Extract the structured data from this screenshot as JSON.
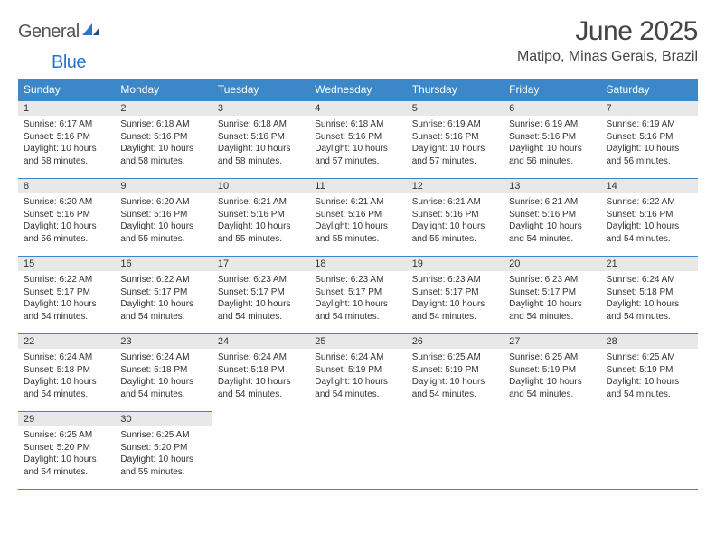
{
  "logo": {
    "part1": "General",
    "part2": "Blue"
  },
  "title": "June 2025",
  "location": "Matipo, Minas Gerais, Brazil",
  "colors": {
    "header_bg": "#3b87c8",
    "header_text": "#ffffff",
    "daynum_bg": "#e8e8e8",
    "border": "#3b87c8",
    "logo_gray": "#555555",
    "logo_blue": "#2a74c7"
  },
  "weekdays": [
    "Sunday",
    "Monday",
    "Tuesday",
    "Wednesday",
    "Thursday",
    "Friday",
    "Saturday"
  ],
  "weeks": [
    [
      {
        "n": "1",
        "sr": "6:17 AM",
        "ss": "5:16 PM",
        "dl": "10 hours and 58 minutes."
      },
      {
        "n": "2",
        "sr": "6:18 AM",
        "ss": "5:16 PM",
        "dl": "10 hours and 58 minutes."
      },
      {
        "n": "3",
        "sr": "6:18 AM",
        "ss": "5:16 PM",
        "dl": "10 hours and 58 minutes."
      },
      {
        "n": "4",
        "sr": "6:18 AM",
        "ss": "5:16 PM",
        "dl": "10 hours and 57 minutes."
      },
      {
        "n": "5",
        "sr": "6:19 AM",
        "ss": "5:16 PM",
        "dl": "10 hours and 57 minutes."
      },
      {
        "n": "6",
        "sr": "6:19 AM",
        "ss": "5:16 PM",
        "dl": "10 hours and 56 minutes."
      },
      {
        "n": "7",
        "sr": "6:19 AM",
        "ss": "5:16 PM",
        "dl": "10 hours and 56 minutes."
      }
    ],
    [
      {
        "n": "8",
        "sr": "6:20 AM",
        "ss": "5:16 PM",
        "dl": "10 hours and 56 minutes."
      },
      {
        "n": "9",
        "sr": "6:20 AM",
        "ss": "5:16 PM",
        "dl": "10 hours and 55 minutes."
      },
      {
        "n": "10",
        "sr": "6:21 AM",
        "ss": "5:16 PM",
        "dl": "10 hours and 55 minutes."
      },
      {
        "n": "11",
        "sr": "6:21 AM",
        "ss": "5:16 PM",
        "dl": "10 hours and 55 minutes."
      },
      {
        "n": "12",
        "sr": "6:21 AM",
        "ss": "5:16 PM",
        "dl": "10 hours and 55 minutes."
      },
      {
        "n": "13",
        "sr": "6:21 AM",
        "ss": "5:16 PM",
        "dl": "10 hours and 54 minutes."
      },
      {
        "n": "14",
        "sr": "6:22 AM",
        "ss": "5:16 PM",
        "dl": "10 hours and 54 minutes."
      }
    ],
    [
      {
        "n": "15",
        "sr": "6:22 AM",
        "ss": "5:17 PM",
        "dl": "10 hours and 54 minutes."
      },
      {
        "n": "16",
        "sr": "6:22 AM",
        "ss": "5:17 PM",
        "dl": "10 hours and 54 minutes."
      },
      {
        "n": "17",
        "sr": "6:23 AM",
        "ss": "5:17 PM",
        "dl": "10 hours and 54 minutes."
      },
      {
        "n": "18",
        "sr": "6:23 AM",
        "ss": "5:17 PM",
        "dl": "10 hours and 54 minutes."
      },
      {
        "n": "19",
        "sr": "6:23 AM",
        "ss": "5:17 PM",
        "dl": "10 hours and 54 minutes."
      },
      {
        "n": "20",
        "sr": "6:23 AM",
        "ss": "5:17 PM",
        "dl": "10 hours and 54 minutes."
      },
      {
        "n": "21",
        "sr": "6:24 AM",
        "ss": "5:18 PM",
        "dl": "10 hours and 54 minutes."
      }
    ],
    [
      {
        "n": "22",
        "sr": "6:24 AM",
        "ss": "5:18 PM",
        "dl": "10 hours and 54 minutes."
      },
      {
        "n": "23",
        "sr": "6:24 AM",
        "ss": "5:18 PM",
        "dl": "10 hours and 54 minutes."
      },
      {
        "n": "24",
        "sr": "6:24 AM",
        "ss": "5:18 PM",
        "dl": "10 hours and 54 minutes."
      },
      {
        "n": "25",
        "sr": "6:24 AM",
        "ss": "5:19 PM",
        "dl": "10 hours and 54 minutes."
      },
      {
        "n": "26",
        "sr": "6:25 AM",
        "ss": "5:19 PM",
        "dl": "10 hours and 54 minutes."
      },
      {
        "n": "27",
        "sr": "6:25 AM",
        "ss": "5:19 PM",
        "dl": "10 hours and 54 minutes."
      },
      {
        "n": "28",
        "sr": "6:25 AM",
        "ss": "5:19 PM",
        "dl": "10 hours and 54 minutes."
      }
    ],
    [
      {
        "n": "29",
        "sr": "6:25 AM",
        "ss": "5:20 PM",
        "dl": "10 hours and 54 minutes."
      },
      {
        "n": "30",
        "sr": "6:25 AM",
        "ss": "5:20 PM",
        "dl": "10 hours and 55 minutes."
      },
      null,
      null,
      null,
      null,
      null
    ]
  ],
  "labels": {
    "sunrise": "Sunrise:",
    "sunset": "Sunset:",
    "daylight": "Daylight:"
  }
}
